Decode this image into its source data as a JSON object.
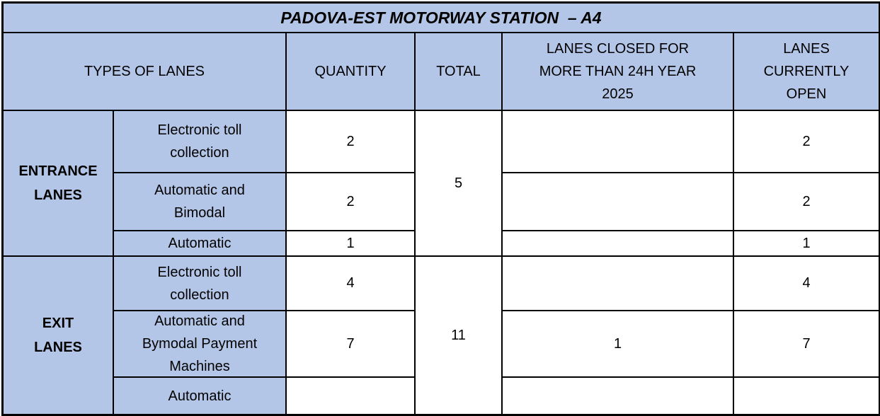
{
  "title": "PADOVA-EST MOTORWAY STATION  – A4",
  "colors": {
    "header_bg": "#b4c6e7",
    "cell_bg": "#ffffff",
    "border": "#000000",
    "text": "#000000"
  },
  "table": {
    "column_headers": {
      "types_of_lanes": "TYPES OF LANES",
      "quantity": "QUANTITY",
      "total": "TOTAL",
      "lanes_closed": "LANES CLOSED FOR MORE THAN 24H YEAR 2025",
      "lanes_open": "LANES CURRENTLY OPEN"
    },
    "sections": [
      {
        "label": "ENTRANCE LANES",
        "total": "5",
        "rows": [
          {
            "type": "Electronic toll collection",
            "quantity": "2",
            "closed": "",
            "open": "2"
          },
          {
            "type": "Automatic and Bimodal",
            "quantity": "2",
            "closed": "",
            "open": "2"
          },
          {
            "type": "Automatic",
            "quantity": "1",
            "closed": "",
            "open": "1"
          }
        ]
      },
      {
        "label": "EXIT LANES",
        "total": "11",
        "rows": [
          {
            "type": "Electronic toll collection",
            "quantity": "4",
            "closed": "",
            "open": "4"
          },
          {
            "type": "Automatic and Bymodal Payment Machines",
            "quantity": "7",
            "closed": "1",
            "open": "7"
          },
          {
            "type": "Automatic",
            "quantity": "",
            "closed": "",
            "open": ""
          }
        ]
      }
    ]
  }
}
